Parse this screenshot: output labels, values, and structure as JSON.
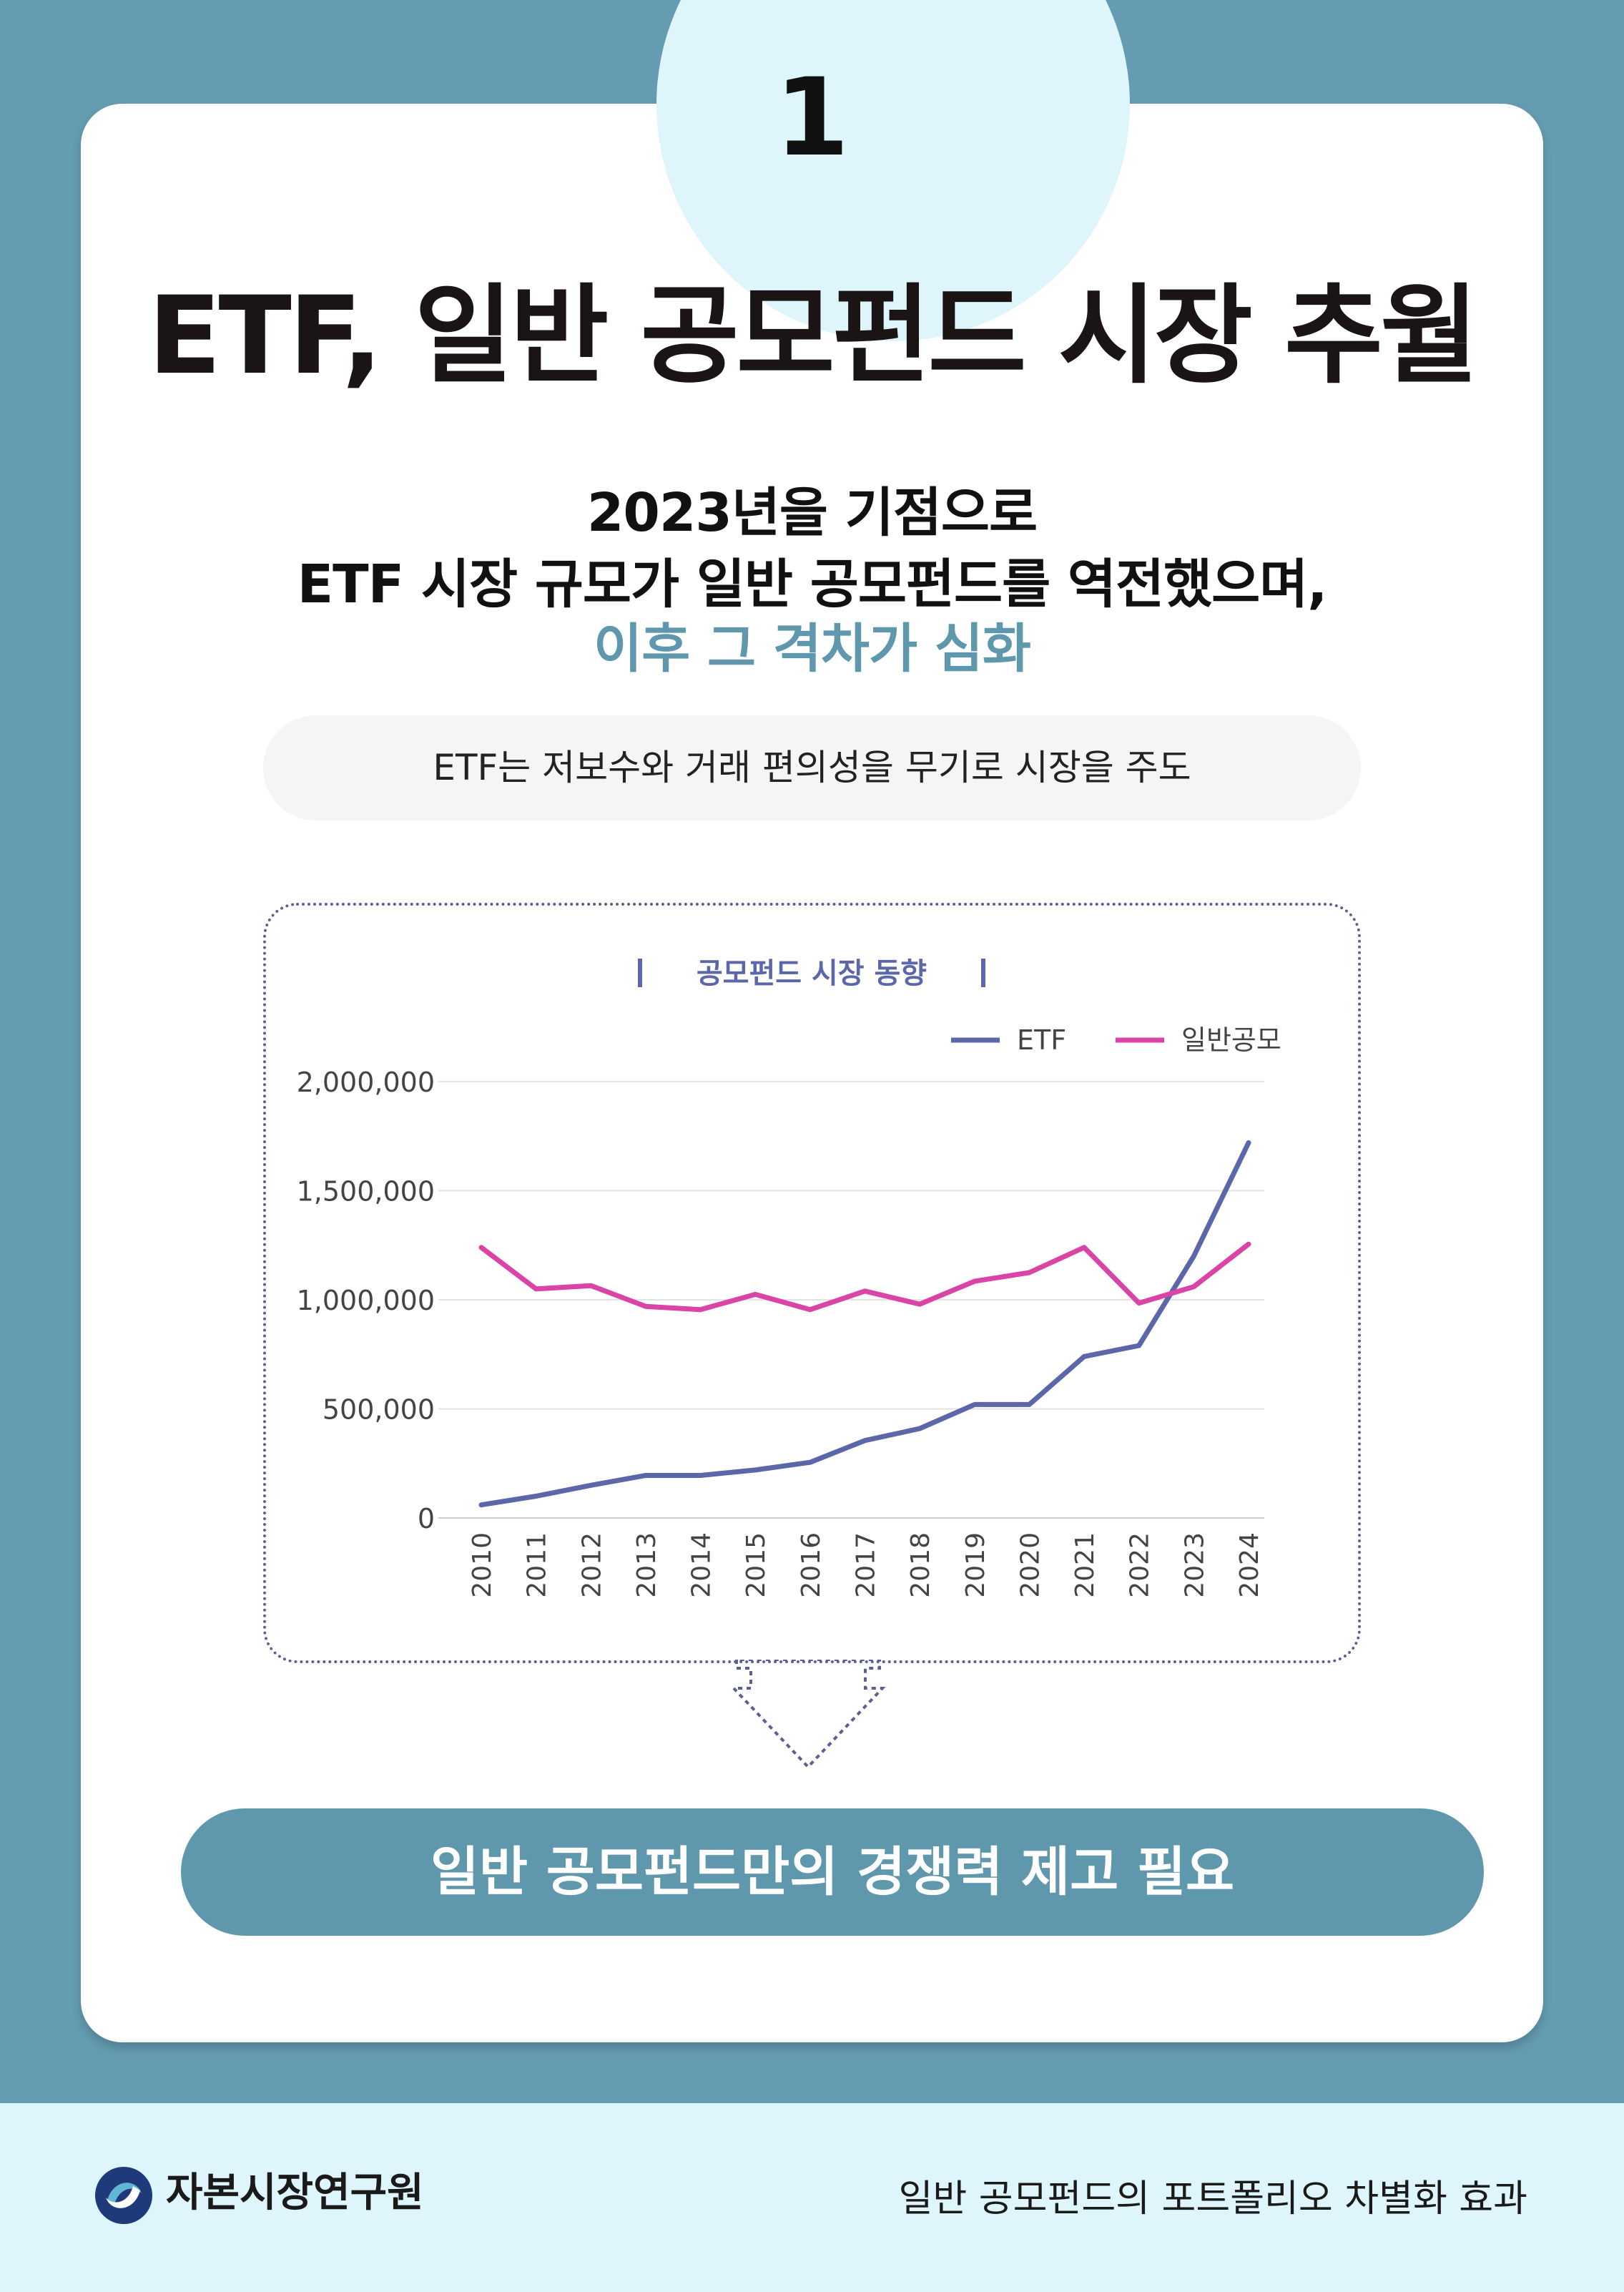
{
  "step_number": "1",
  "title": "ETF, 일반 공모펀드 시장 추월",
  "subtitle": {
    "line1": "2023년을 기점으로",
    "line2": "ETF 시장 규모가 일반 공모펀드를 역전했으며,",
    "line3": "이후 그 격차가 심화"
  },
  "note": "ETF는 저보수와 거래 편의성을 무기로 시장을 주도",
  "conclusion": "일반 공모펀드만의 경쟁력 제고 필요",
  "footer": {
    "org_name": "자본시장연구원",
    "report_title": "일반 공모펀드의 포트폴리오 차별화 효과"
  },
  "colors": {
    "etf": "#5b67a8",
    "general": "#d944a6",
    "accent": "#5f98ad"
  },
  "chart_data": {
    "type": "line",
    "title": "공모펀드 시장 동향",
    "categories": [
      "2010",
      "2011",
      "2012",
      "2013",
      "2014",
      "2015",
      "2016",
      "2017",
      "2018",
      "2019",
      "2020",
      "2021",
      "2022",
      "2023",
      "2024"
    ],
    "series": [
      {
        "name": "ETF",
        "values": [
          60000,
          100000,
          150000,
          195000,
          195000,
          220000,
          255000,
          355000,
          410000,
          520000,
          520000,
          740000,
          790000,
          1200000,
          1720000
        ]
      },
      {
        "name": "일반공모",
        "values": [
          1240000,
          1050000,
          1065000,
          970000,
          955000,
          1025000,
          955000,
          1040000,
          980000,
          1085000,
          1125000,
          1240000,
          985000,
          1060000,
          1255000
        ]
      }
    ],
    "ylim": [
      0,
      2000000
    ],
    "yticks": [
      0,
      500000,
      1000000,
      1500000,
      2000000
    ],
    "ytick_labels": [
      "0",
      "500,000",
      "1,000,000",
      "1,500,000",
      "2,000,000"
    ],
    "xlabel": "",
    "ylabel": "",
    "legend": "top-right",
    "grid": true
  }
}
